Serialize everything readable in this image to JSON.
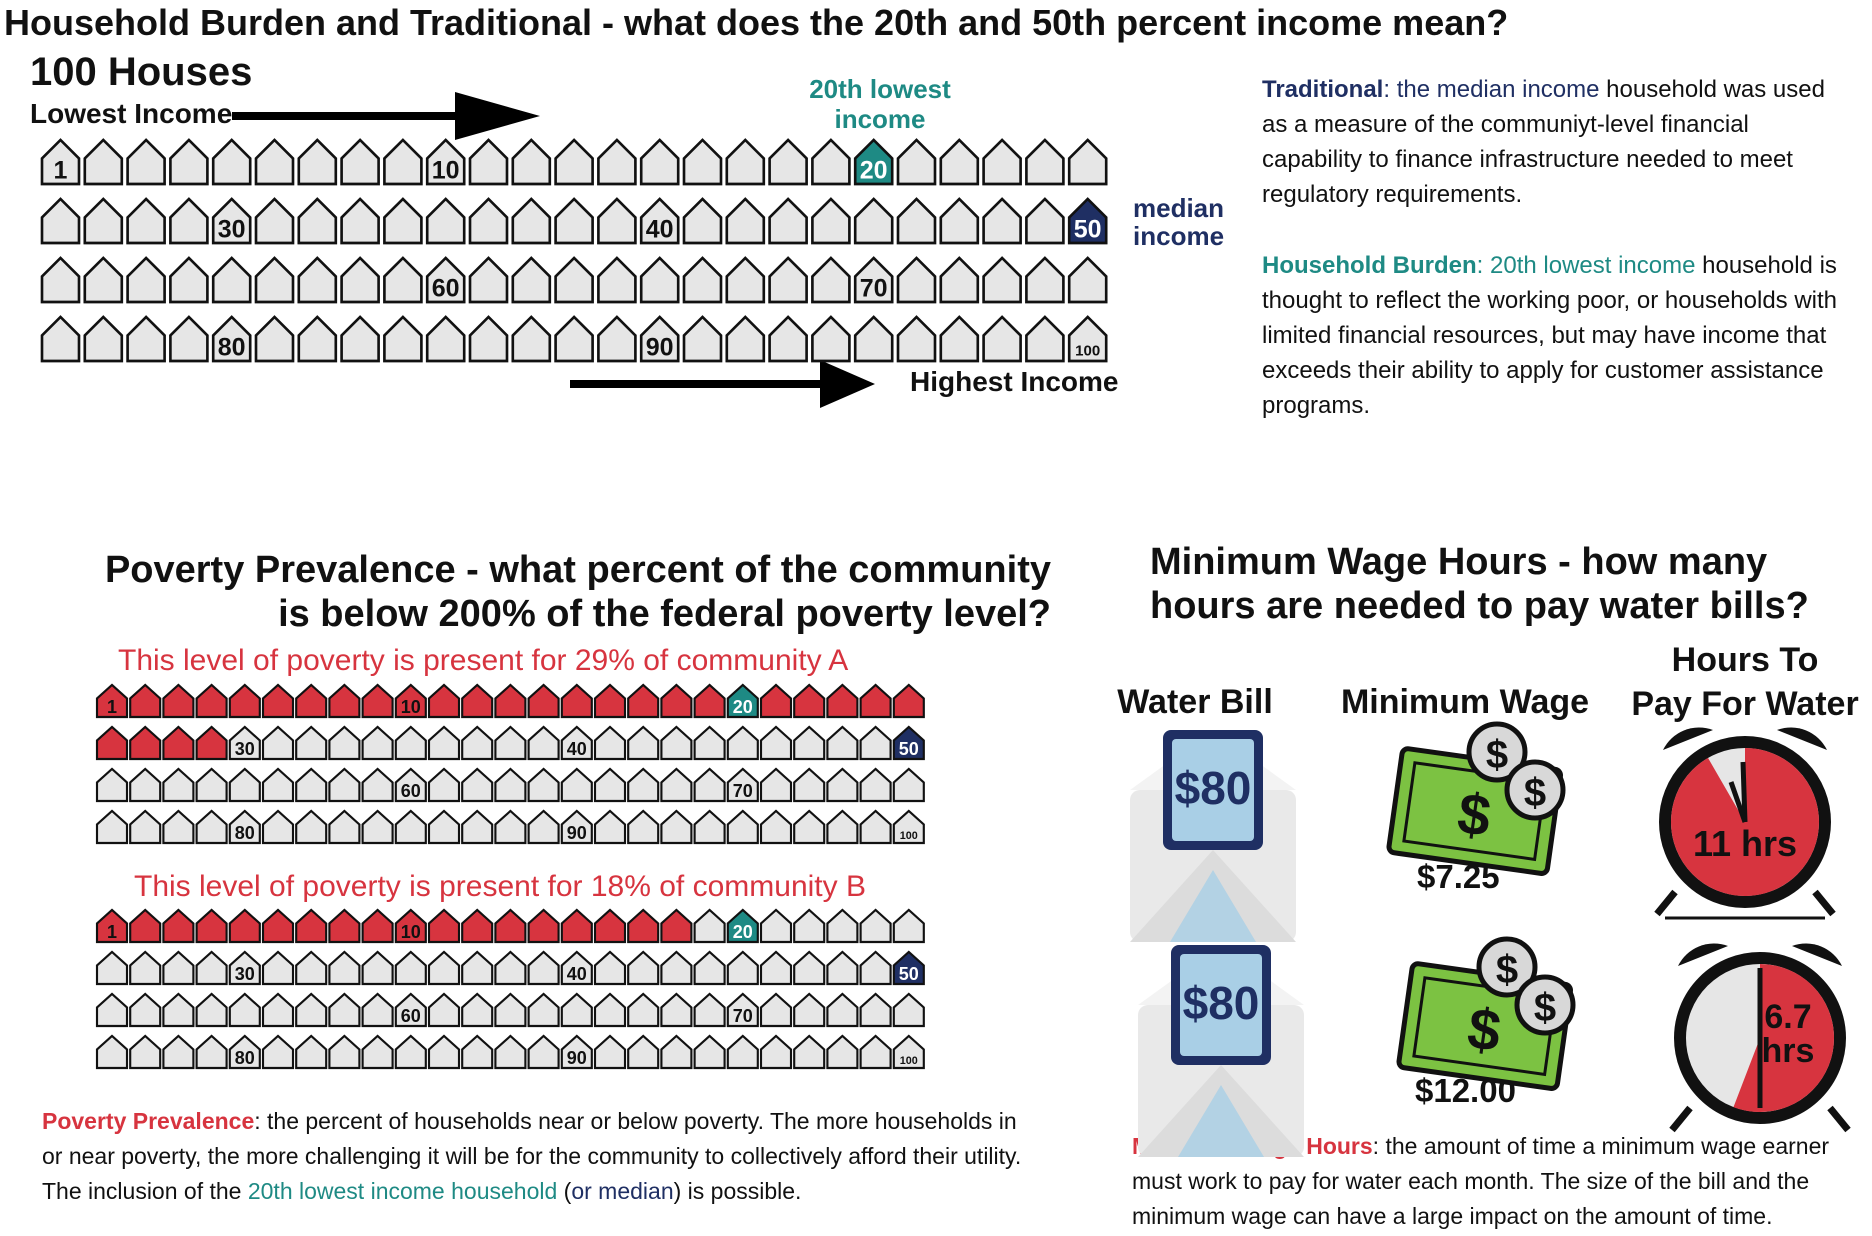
{
  "title": "Household Burden and Traditional - what does the 20th and 50th percent income mean?",
  "houses_panel": {
    "heading": "100 Houses",
    "lowest_label": "Lowest Income",
    "highest_label": "Highest Income",
    "twentieth_label_line1": "20th lowest",
    "twentieth_label_line2": "income",
    "median_label_line1": "median",
    "median_label_line2": "income",
    "house_numbers": [
      "1",
      "10",
      "20",
      "30",
      "40",
      "50",
      "60",
      "70",
      "80",
      "90",
      "100"
    ]
  },
  "traditional": {
    "term": "Traditional",
    "colon": ": ",
    "highlight": "the median income",
    "rest": " household was used as a measure of the communiyt-level financial capability to finance infrastructure needed to meet regulatory requirements."
  },
  "household_burden": {
    "term": "Household Burden",
    "colon": ": ",
    "highlight": "20th lowest income",
    "rest": " household is thought to reflect the working poor, or households with limited financial resources, but may have income that exceeds their ability to apply for customer assistance programs."
  },
  "poverty": {
    "title_line1": "Poverty Prevalence - what percent of the community",
    "title_line2": "is below 200% of the federal poverty level?",
    "community_a_text": "This level of poverty is present for 29% of community A",
    "community_b_text": "This level of poverty is present for 18% of community B",
    "community_a_percent": 29,
    "community_b_percent": 18,
    "desc_term": "Poverty Prevalence",
    "desc_part1": ": the percent of households near or below poverty. The more households in or near poverty, the more challenging it will be for the community to collectively afford their utility. The inclusion of the ",
    "desc_teal": "20th lowest income household",
    "desc_part2": " (",
    "desc_navy": "or median",
    "desc_part3": ") is possible."
  },
  "min_wage": {
    "title_line1": "Minimum Wage Hours - how many",
    "title_line2": "hours are needed to pay water bills?",
    "col_water_bill": "Water Bill",
    "col_min_wage": "Minimum Wage",
    "col_hours_line1": "Hours To",
    "col_hours_line2": "Pay For Water",
    "rows": [
      {
        "bill": "$80",
        "wage": "$7.25",
        "hours_line1": "11 hrs",
        "hours_line2": "",
        "hours_value": 11
      },
      {
        "bill": "$80",
        "wage": "$12.00",
        "hours_line1": "6.7",
        "hours_line2": "hrs",
        "hours_value": 6.7
      }
    ],
    "desc_term": "Minimum Wage Hours",
    "desc_rest": ": the amount of time a minimum wage earner must work to pay for water each month. The size of the bill and the minimum wage can have a large impact on the amount of time."
  },
  "colors": {
    "teal": "#1e8a84",
    "navy": "#1f2f63",
    "red": "#d7343f",
    "house_fill": "#e6e6e6",
    "money_green": "#7cc242",
    "envelope_blue": "#a9cfe6"
  },
  "icons": [
    "house-icon",
    "envelope-icon",
    "money-icon",
    "alarm-clock-icon",
    "arrow-right-icon"
  ]
}
